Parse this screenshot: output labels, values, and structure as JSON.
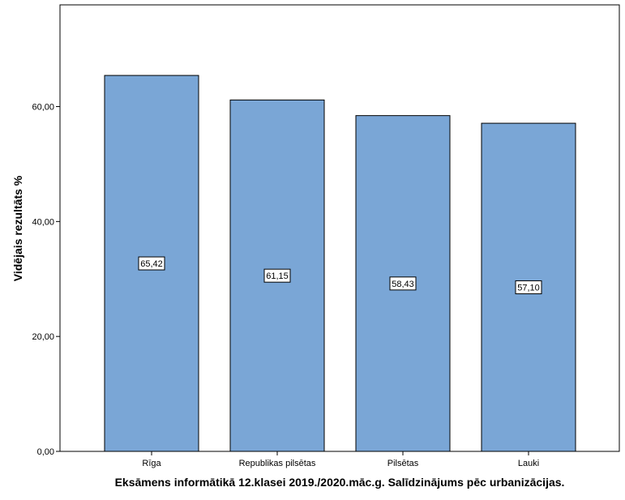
{
  "chart_data": {
    "type": "bar",
    "categories": [
      "Rīga",
      "Republikas pilsētas",
      "Pilsētas",
      "Lauki"
    ],
    "values": [
      65.42,
      61.15,
      58.43,
      57.1
    ],
    "data_labels": [
      "65,42",
      "61,15",
      "58,43",
      "57,10"
    ],
    "xlabel": "Eksāmens informātikā 12.klasei 2019./2020.māc.g. Salīdzinājums pēc urbanizācijas.",
    "ylabel": "Vidējais rezultāts %",
    "ylim": [
      0,
      77.7
    ],
    "yticks": [
      0,
      20,
      40,
      60
    ],
    "ytick_labels": [
      "0,00",
      "20,00",
      "40,00",
      "60,00"
    ],
    "grid": false,
    "legend": "none",
    "colors": {
      "bar_fill": "#7aa6d6",
      "bar_stroke": "#000000",
      "axis": "#000000"
    }
  }
}
